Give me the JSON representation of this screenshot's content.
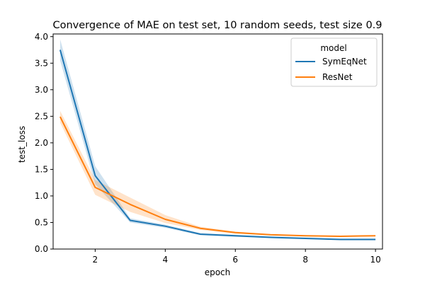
{
  "chart_data": {
    "type": "line",
    "title": "Convergence of MAE on test set, 10 random seeds, test size 0.9",
    "xlabel": "epoch",
    "ylabel": "test_loss",
    "xlim": [
      0.8,
      10.2
    ],
    "ylim": [
      0.0,
      4.05
    ],
    "xticks": [
      2,
      4,
      6,
      8,
      10
    ],
    "yticks": [
      0.0,
      0.5,
      1.0,
      1.5,
      2.0,
      2.5,
      3.0,
      3.5,
      4.0
    ],
    "xtick_labels": [
      "2",
      "4",
      "6",
      "8",
      "10"
    ],
    "ytick_labels": [
      "0.0",
      "0.5",
      "1.0",
      "1.5",
      "2.0",
      "2.5",
      "3.0",
      "3.5",
      "4.0"
    ],
    "grid": false,
    "legend": {
      "title": "model",
      "placement": "top-right"
    },
    "x": [
      1,
      2,
      3,
      4,
      5,
      6,
      7,
      8,
      9,
      10
    ],
    "series": [
      {
        "name": "SymEqNet",
        "color": "#1f77b4",
        "values": [
          3.75,
          1.38,
          0.54,
          0.43,
          0.28,
          0.25,
          0.22,
          0.2,
          0.18,
          0.18
        ],
        "lower": [
          3.55,
          1.22,
          0.5,
          0.4,
          0.26,
          0.23,
          0.21,
          0.19,
          0.17,
          0.17
        ],
        "upper": [
          3.95,
          1.56,
          0.58,
          0.46,
          0.3,
          0.27,
          0.24,
          0.22,
          0.2,
          0.2
        ]
      },
      {
        "name": "ResNet",
        "color": "#ff7f0e",
        "values": [
          2.49,
          1.16,
          0.84,
          0.56,
          0.39,
          0.31,
          0.27,
          0.25,
          0.24,
          0.25
        ],
        "lower": [
          2.38,
          1.02,
          0.7,
          0.49,
          0.36,
          0.29,
          0.26,
          0.24,
          0.23,
          0.24
        ],
        "upper": [
          2.6,
          1.3,
          0.97,
          0.64,
          0.42,
          0.33,
          0.28,
          0.26,
          0.25,
          0.26
        ]
      }
    ]
  }
}
